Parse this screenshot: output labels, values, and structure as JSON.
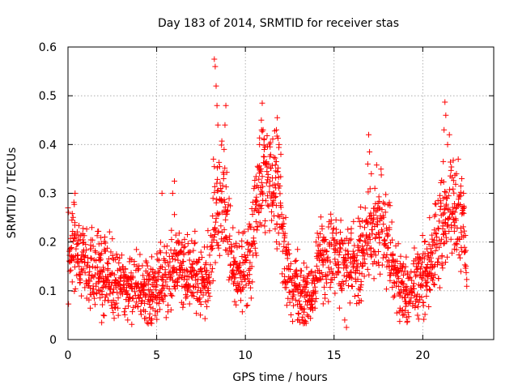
{
  "chart_data": {
    "type": "scatter",
    "title": "Day 183 of 2014, SRMTID for receiver stas",
    "xlabel": "GPS time / hours",
    "ylabel": "SRMTID / TECUs",
    "xlim": [
      0,
      24
    ],
    "ylim": [
      0,
      0.6
    ],
    "x_ticks": [
      0,
      5,
      10,
      15,
      20
    ],
    "x_tick_labels": [
      "0",
      "5",
      "10",
      "15",
      "20"
    ],
    "y_ticks": [
      0,
      0.1,
      0.2,
      0.3,
      0.4,
      0.5,
      0.6
    ],
    "y_tick_labels": [
      "0",
      "0.1",
      "0.2",
      "0.3",
      "0.4",
      "0.5",
      "0.6"
    ],
    "grid": true,
    "marker": "plus",
    "color": "#ff0000",
    "series": [
      {
        "name": "SRMTID",
        "x_start": 0.0,
        "x_end": 22.5,
        "x_step": 0.033,
        "outliers": [
          [
            8.25,
            0.575
          ],
          [
            8.3,
            0.56
          ],
          [
            8.35,
            0.52
          ],
          [
            8.4,
            0.48
          ],
          [
            8.45,
            0.44
          ],
          [
            8.9,
            0.48
          ],
          [
            8.85,
            0.44
          ],
          [
            8.8,
            0.39
          ],
          [
            8.2,
            0.37
          ],
          [
            10.95,
            0.485
          ],
          [
            10.9,
            0.45
          ],
          [
            11.0,
            0.43
          ],
          [
            11.05,
            0.41
          ],
          [
            10.8,
            0.4
          ],
          [
            11.8,
            0.455
          ],
          [
            11.75,
            0.43
          ],
          [
            11.9,
            0.4
          ],
          [
            12.0,
            0.38
          ],
          [
            16.95,
            0.42
          ],
          [
            17.0,
            0.385
          ],
          [
            16.9,
            0.36
          ],
          [
            17.1,
            0.34
          ],
          [
            21.25,
            0.487
          ],
          [
            21.3,
            0.46
          ],
          [
            21.2,
            0.43
          ],
          [
            21.5,
            0.42
          ],
          [
            21.4,
            0.4
          ],
          [
            22.0,
            0.37
          ],
          [
            21.9,
            0.34
          ],
          [
            22.2,
            0.33
          ],
          [
            22.3,
            0.3
          ],
          [
            6.0,
            0.325
          ],
          [
            5.9,
            0.3
          ],
          [
            5.3,
            0.3
          ],
          [
            0.4,
            0.3
          ],
          [
            0.0,
            0.27
          ],
          [
            15.7,
            0.025
          ],
          [
            15.6,
            0.04
          ],
          [
            1.9,
            0.035
          ],
          [
            2.0,
            0.05
          ]
        ]
      }
    ]
  }
}
